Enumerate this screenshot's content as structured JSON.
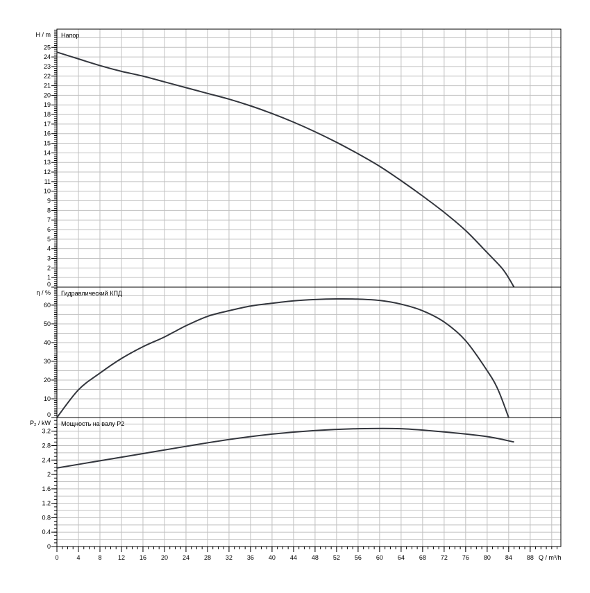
{
  "chart_data": [
    {
      "type": "line",
      "title": "Напор",
      "ylabel": "H / m",
      "xlabel": "Q / m³/h",
      "xlim": [
        0,
        93.7
      ],
      "ylim": [
        0,
        26.9
      ],
      "yticks": [
        0,
        1,
        2,
        3,
        4,
        5,
        6,
        7,
        8,
        9,
        10,
        11,
        12,
        13,
        14,
        15,
        16,
        17,
        18,
        19,
        20,
        21,
        22,
        23,
        24,
        25
      ],
      "ygrid_step": 1,
      "x": [
        0,
        4,
        8,
        12,
        16,
        20,
        24,
        28,
        32,
        36,
        40,
        44,
        48,
        52,
        56,
        60,
        64,
        68,
        72,
        76,
        80,
        83,
        85
      ],
      "y": [
        24.5,
        23.8,
        23.1,
        22.5,
        22.0,
        21.4,
        20.8,
        20.2,
        19.6,
        18.9,
        18.1,
        17.2,
        16.2,
        15.1,
        13.9,
        12.6,
        11.1,
        9.5,
        7.8,
        5.9,
        3.6,
        1.8,
        0
      ]
    },
    {
      "type": "line",
      "title": "Гидравлический КПД",
      "ylabel": "η / %",
      "xlim": [
        0,
        93.7
      ],
      "ylim": [
        0,
        69.6
      ],
      "yticks": [
        0,
        10,
        20,
        30,
        40,
        50,
        60
      ],
      "ygrid_step": 5,
      "x": [
        0,
        4,
        8,
        12,
        16,
        20,
        24,
        28,
        32,
        36,
        40,
        44,
        48,
        52,
        56,
        60,
        64,
        68,
        72,
        76,
        80,
        82,
        84
      ],
      "y": [
        0,
        14.8,
        23.7,
        31.5,
        37.8,
        43,
        49,
        54,
        57,
        59.5,
        61,
        62.3,
        63,
        63.3,
        63.2,
        62.5,
        60.5,
        57,
        51,
        41,
        25,
        15,
        0
      ]
    },
    {
      "type": "line",
      "title": "Мощность на валу P2",
      "ylabel": "P₂ / kW",
      "xlim": [
        0,
        93.7
      ],
      "ylim": [
        0,
        3.58
      ],
      "yticks": [
        0,
        0.4,
        0.8,
        1.2,
        1.6,
        2,
        2.4,
        2.8,
        3.2
      ],
      "ygrid_step": 0.2,
      "x": [
        0,
        8,
        16,
        24,
        32,
        40,
        48,
        56,
        64,
        72,
        80,
        85
      ],
      "y": [
        2.18,
        2.38,
        2.58,
        2.78,
        2.97,
        3.12,
        3.22,
        3.27,
        3.27,
        3.18,
        3.05,
        2.9
      ]
    }
  ],
  "xticks": [
    0,
    4,
    8,
    12,
    16,
    20,
    24,
    28,
    32,
    36,
    40,
    44,
    48,
    52,
    56,
    60,
    64,
    68,
    72,
    76,
    80,
    84,
    88
  ],
  "xlabel": "Q / m³/h",
  "colors": {
    "curve": "#33363d",
    "grid": "#c0c0c0",
    "frame": "#000000"
  }
}
